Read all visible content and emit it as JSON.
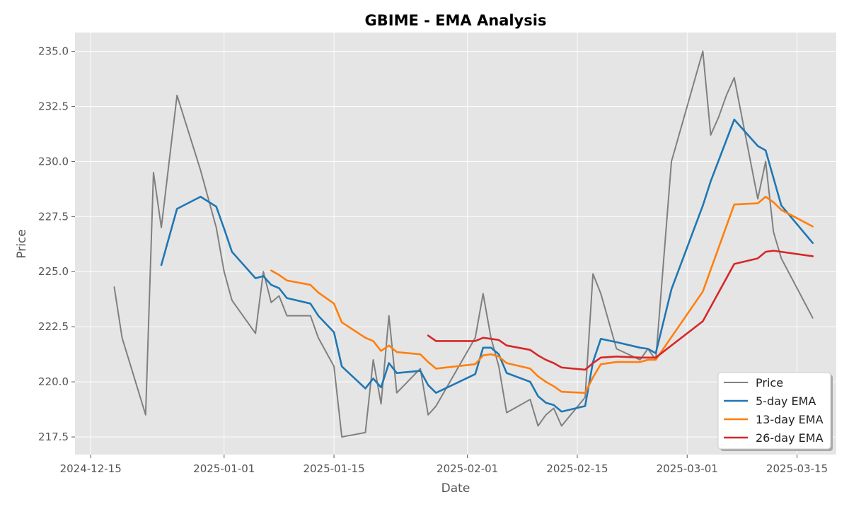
{
  "chart_data": {
    "type": "line",
    "title": "GBIME - EMA Analysis",
    "xlabel": "Date",
    "ylabel": "Price",
    "xlim": [
      "2024-12-13",
      "2025-03-20"
    ],
    "ylim": [
      216.7,
      235.85
    ],
    "x_ticks": [
      "2024-12-15",
      "2025-01-01",
      "2025-01-15",
      "2025-02-01",
      "2025-02-15",
      "2025-03-01",
      "2025-03-15"
    ],
    "y_ticks": [
      217.5,
      220.0,
      222.5,
      225.0,
      227.5,
      230.0,
      232.5,
      235.0
    ],
    "y_tick_labels": [
      "217.5",
      "220.0",
      "222.5",
      "225.0",
      "227.5",
      "230.0",
      "232.5",
      "235.0"
    ],
    "grid": true,
    "legend_position": "bottom-right",
    "background_color": "#e5e5e5",
    "series": [
      {
        "name": "Price",
        "color": "#808080",
        "points": [
          [
            "2024-12-18",
            224.3
          ],
          [
            "2024-12-19",
            222.0
          ],
          [
            "2024-12-22",
            218.5
          ],
          [
            "2024-12-23",
            229.5
          ],
          [
            "2024-12-24",
            227.0
          ],
          [
            "2024-12-26",
            233.0
          ],
          [
            "2024-12-29",
            229.6
          ],
          [
            "2024-12-31",
            227.0
          ],
          [
            "2025-01-01",
            225.0
          ],
          [
            "2025-01-02",
            223.7
          ],
          [
            "2025-01-05",
            222.2
          ],
          [
            "2025-01-06",
            225.0
          ],
          [
            "2025-01-07",
            223.6
          ],
          [
            "2025-01-08",
            223.9
          ],
          [
            "2025-01-09",
            223.0
          ],
          [
            "2025-01-12",
            223.0
          ],
          [
            "2025-01-13",
            222.0
          ],
          [
            "2025-01-15",
            220.7
          ],
          [
            "2025-01-16",
            217.5
          ],
          [
            "2025-01-19",
            217.7
          ],
          [
            "2025-01-20",
            221.0
          ],
          [
            "2025-01-21",
            219.0
          ],
          [
            "2025-01-22",
            223.0
          ],
          [
            "2025-01-23",
            219.5
          ],
          [
            "2025-01-26",
            220.6
          ],
          [
            "2025-01-27",
            218.5
          ],
          [
            "2025-01-28",
            218.9
          ],
          [
            "2025-02-02",
            222.0
          ],
          [
            "2025-02-03",
            224.0
          ],
          [
            "2025-02-04",
            222.0
          ],
          [
            "2025-02-05",
            220.7
          ],
          [
            "2025-02-06",
            218.6
          ],
          [
            "2025-02-09",
            219.2
          ],
          [
            "2025-02-10",
            218.0
          ],
          [
            "2025-02-11",
            218.5
          ],
          [
            "2025-02-12",
            218.8
          ],
          [
            "2025-02-13",
            218.0
          ],
          [
            "2025-02-16",
            219.3
          ],
          [
            "2025-02-17",
            224.9
          ],
          [
            "2025-02-18",
            224.0
          ],
          [
            "2025-02-20",
            221.5
          ],
          [
            "2025-02-23",
            221.0
          ],
          [
            "2025-02-24",
            221.5
          ],
          [
            "2025-02-25",
            221.0
          ],
          [
            "2025-02-27",
            230.0
          ],
          [
            "2025-03-03",
            235.0
          ],
          [
            "2025-03-04",
            231.2
          ],
          [
            "2025-03-05",
            232.0
          ],
          [
            "2025-03-06",
            233.0
          ],
          [
            "2025-03-07",
            233.8
          ],
          [
            "2025-03-10",
            228.3
          ],
          [
            "2025-03-11",
            230.0
          ],
          [
            "2025-03-12",
            226.8
          ],
          [
            "2025-03-13",
            225.6
          ],
          [
            "2025-03-17",
            222.9
          ]
        ]
      },
      {
        "name": "5-day EMA",
        "color": "#1f77b4",
        "points": [
          [
            "2024-12-24",
            225.3
          ],
          [
            "2024-12-26",
            227.85
          ],
          [
            "2024-12-29",
            228.4
          ],
          [
            "2024-12-31",
            227.95
          ],
          [
            "2025-01-01",
            226.95
          ],
          [
            "2025-01-02",
            225.9
          ],
          [
            "2025-01-05",
            224.7
          ],
          [
            "2025-01-06",
            224.8
          ],
          [
            "2025-01-07",
            224.4
          ],
          [
            "2025-01-08",
            224.25
          ],
          [
            "2025-01-09",
            223.8
          ],
          [
            "2025-01-12",
            223.55
          ],
          [
            "2025-01-13",
            223.0
          ],
          [
            "2025-01-15",
            222.25
          ],
          [
            "2025-01-16",
            220.7
          ],
          [
            "2025-01-19",
            219.7
          ],
          [
            "2025-01-20",
            220.15
          ],
          [
            "2025-01-21",
            219.75
          ],
          [
            "2025-01-22",
            220.85
          ],
          [
            "2025-01-23",
            220.4
          ],
          [
            "2025-01-26",
            220.5
          ],
          [
            "2025-01-27",
            219.85
          ],
          [
            "2025-01-28",
            219.5
          ],
          [
            "2025-02-02",
            220.35
          ],
          [
            "2025-02-03",
            221.55
          ],
          [
            "2025-02-04",
            221.55
          ],
          [
            "2025-02-05",
            221.25
          ],
          [
            "2025-02-06",
            220.4
          ],
          [
            "2025-02-09",
            220.0
          ],
          [
            "2025-02-10",
            219.35
          ],
          [
            "2025-02-11",
            219.05
          ],
          [
            "2025-02-12",
            218.95
          ],
          [
            "2025-02-13",
            218.65
          ],
          [
            "2025-02-16",
            218.9
          ],
          [
            "2025-02-17",
            220.9
          ],
          [
            "2025-02-18",
            221.95
          ],
          [
            "2025-02-20",
            221.8
          ],
          [
            "2025-02-23",
            221.55
          ],
          [
            "2025-02-24",
            221.5
          ],
          [
            "2025-02-25",
            221.3
          ],
          [
            "2025-02-27",
            224.2
          ],
          [
            "2025-03-03",
            228.0
          ],
          [
            "2025-03-04",
            229.1
          ],
          [
            "2025-03-07",
            231.9
          ],
          [
            "2025-03-10",
            230.7
          ],
          [
            "2025-03-11",
            230.5
          ],
          [
            "2025-03-13",
            228.0
          ],
          [
            "2025-03-17",
            226.3
          ]
        ]
      },
      {
        "name": "13-day EMA",
        "color": "#ff7f0e",
        "points": [
          [
            "2025-01-07",
            225.05
          ],
          [
            "2025-01-08",
            224.85
          ],
          [
            "2025-01-09",
            224.6
          ],
          [
            "2025-01-12",
            224.4
          ],
          [
            "2025-01-13",
            224.05
          ],
          [
            "2025-01-15",
            223.55
          ],
          [
            "2025-01-16",
            222.7
          ],
          [
            "2025-01-19",
            222.0
          ],
          [
            "2025-01-20",
            221.85
          ],
          [
            "2025-01-21",
            221.4
          ],
          [
            "2025-01-22",
            221.65
          ],
          [
            "2025-01-23",
            221.35
          ],
          [
            "2025-01-26",
            221.25
          ],
          [
            "2025-01-27",
            220.9
          ],
          [
            "2025-01-28",
            220.6
          ],
          [
            "2025-02-02",
            220.8
          ],
          [
            "2025-02-03",
            221.2
          ],
          [
            "2025-02-04",
            221.25
          ],
          [
            "2025-02-05",
            221.15
          ],
          [
            "2025-02-06",
            220.85
          ],
          [
            "2025-02-09",
            220.6
          ],
          [
            "2025-02-10",
            220.25
          ],
          [
            "2025-02-11",
            220.0
          ],
          [
            "2025-02-12",
            219.8
          ],
          [
            "2025-02-13",
            219.55
          ],
          [
            "2025-02-16",
            219.5
          ],
          [
            "2025-02-17",
            220.2
          ],
          [
            "2025-02-18",
            220.8
          ],
          [
            "2025-02-20",
            220.9
          ],
          [
            "2025-02-23",
            220.9
          ],
          [
            "2025-02-24",
            221.0
          ],
          [
            "2025-02-25",
            221.0
          ],
          [
            "2025-03-03",
            224.1
          ],
          [
            "2025-03-07",
            228.05
          ],
          [
            "2025-03-10",
            228.1
          ],
          [
            "2025-03-11",
            228.4
          ],
          [
            "2025-03-12",
            228.15
          ],
          [
            "2025-03-13",
            227.8
          ],
          [
            "2025-03-17",
            227.05
          ]
        ]
      },
      {
        "name": "26-day EMA",
        "color": "#d62728",
        "points": [
          [
            "2025-01-27",
            222.1
          ],
          [
            "2025-01-28",
            221.85
          ],
          [
            "2025-02-02",
            221.85
          ],
          [
            "2025-02-03",
            222.0
          ],
          [
            "2025-02-04",
            221.95
          ],
          [
            "2025-02-05",
            221.9
          ],
          [
            "2025-02-06",
            221.65
          ],
          [
            "2025-02-09",
            221.45
          ],
          [
            "2025-02-10",
            221.2
          ],
          [
            "2025-02-11",
            221.0
          ],
          [
            "2025-02-12",
            220.85
          ],
          [
            "2025-02-13",
            220.65
          ],
          [
            "2025-02-16",
            220.55
          ],
          [
            "2025-02-17",
            220.85
          ],
          [
            "2025-02-18",
            221.1
          ],
          [
            "2025-02-20",
            221.15
          ],
          [
            "2025-02-23",
            221.1
          ],
          [
            "2025-02-24",
            221.1
          ],
          [
            "2025-02-25",
            221.1
          ],
          [
            "2025-03-03",
            222.75
          ],
          [
            "2025-03-07",
            225.35
          ],
          [
            "2025-03-10",
            225.6
          ],
          [
            "2025-03-11",
            225.9
          ],
          [
            "2025-03-12",
            225.95
          ],
          [
            "2025-03-17",
            225.7
          ]
        ]
      }
    ]
  }
}
